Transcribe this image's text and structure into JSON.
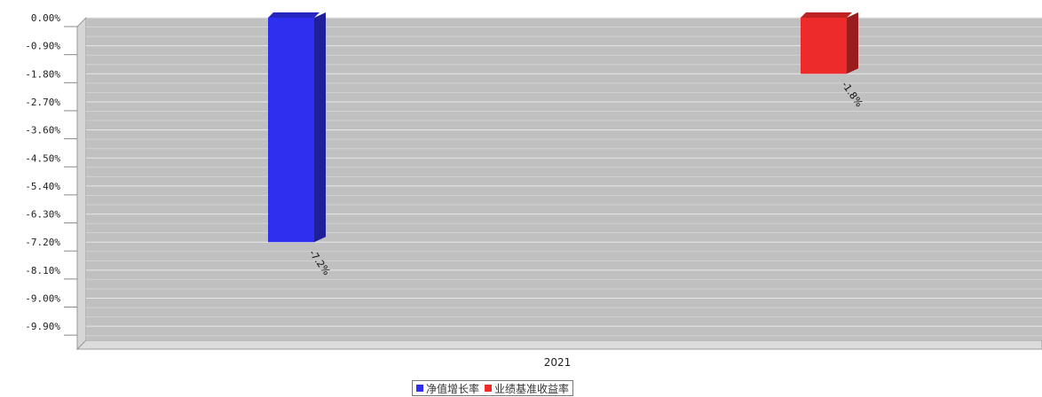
{
  "chart_data": {
    "type": "bar",
    "title": "",
    "categories": [
      "2021"
    ],
    "series": [
      {
        "name": "净值增长率",
        "values": [
          -7.2
        ],
        "color": "#2f2ff0",
        "label": "-7.2%"
      },
      {
        "name": "业绩基准收益率",
        "values": [
          -1.8
        ],
        "color": "#ee2b2b",
        "label": "-1.8%"
      }
    ],
    "y_ticks": [
      "0.00%",
      "-0.90%",
      "-1.80%",
      "-2.70%",
      "-3.60%",
      "-4.50%",
      "-5.40%",
      "-6.30%",
      "-7.20%",
      "-8.10%",
      "-9.00%",
      "-9.90%"
    ],
    "ylim": [
      -10.35,
      0
    ],
    "grid": true,
    "legend_position": "bottom",
    "background_color": "#c0c0c0"
  }
}
